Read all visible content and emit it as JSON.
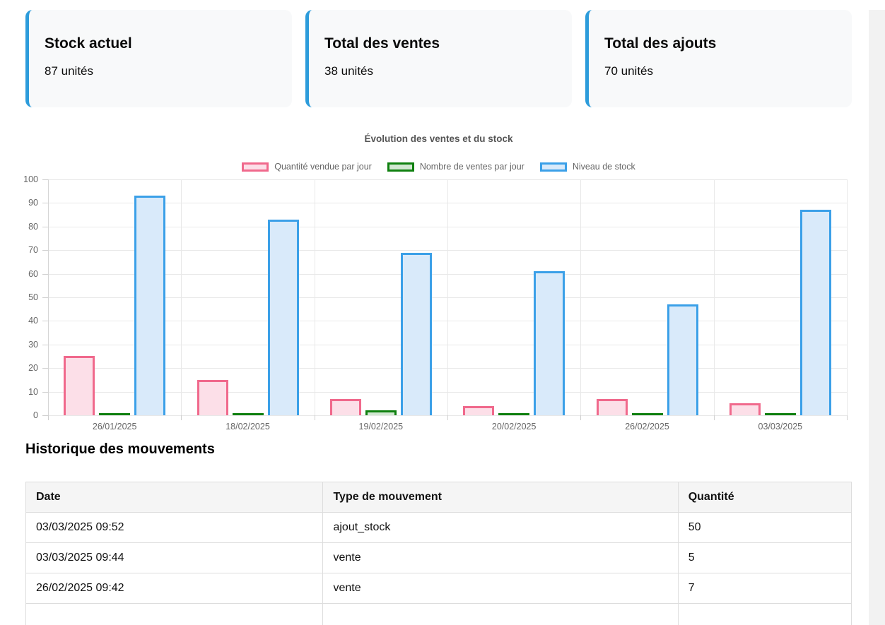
{
  "cards": [
    {
      "title": "Stock actuel",
      "value": "87 unités"
    },
    {
      "title": "Total des ventes",
      "value": "38 unités"
    },
    {
      "title": "Total des ajouts",
      "value": "70 unités"
    }
  ],
  "chart_data": {
    "type": "bar",
    "title": "Évolution des ventes et du stock",
    "categories": [
      "26/01/2025",
      "18/02/2025",
      "19/02/2025",
      "20/02/2025",
      "26/02/2025",
      "03/03/2025"
    ],
    "series": [
      {
        "name": "Quantité vendue par jour",
        "values": [
          25,
          15,
          7,
          4,
          7,
          5
        ],
        "fill": "#fcdfe8",
        "border": "#f0698c"
      },
      {
        "name": "Nombre de ventes par jour",
        "values": [
          1,
          1,
          2,
          1,
          1,
          1
        ],
        "fill": "#d2e8d2",
        "border": "#0f800f"
      },
      {
        "name": "Niveau de stock",
        "values": [
          93,
          83,
          69,
          61,
          47,
          87
        ],
        "fill": "#d9eafa",
        "border": "#3ba0e8"
      }
    ],
    "ylim": [
      0,
      100
    ],
    "ytick_step": 10,
    "grid": true,
    "legend_position": "top"
  },
  "history": {
    "heading": "Historique des mouvements",
    "columns": [
      "Date",
      "Type de mouvement",
      "Quantité"
    ],
    "rows": [
      [
        "03/03/2025 09:52",
        "ajout_stock",
        "50"
      ],
      [
        "03/03/2025 09:44",
        "vente",
        "5"
      ],
      [
        "26/02/2025 09:42",
        "vente",
        "7"
      ]
    ]
  },
  "colors": {
    "card_accent": "#2d9cdb",
    "grid_line": "#e8e8e8",
    "axis_text": "#666666",
    "table_border": "#dddddd",
    "table_header_bg": "#f5f5f5"
  }
}
